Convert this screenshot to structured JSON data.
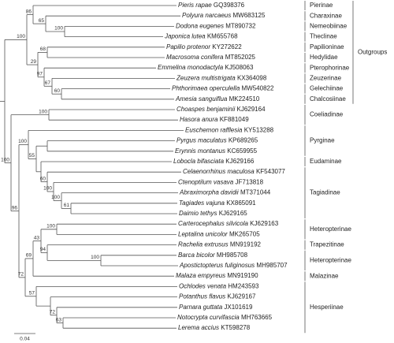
{
  "leaves": [
    {
      "species": "Pieris rapae",
      "accession": "GQ398376"
    },
    {
      "species": "Polyura narcaeus",
      "accession": "MW683125"
    },
    {
      "species": "Dodona eugenes",
      "accession": "MT890732"
    },
    {
      "species": "Japonica lutea",
      "accession": "KM655768"
    },
    {
      "species": "Papilio protenor",
      "accession": "KY272622"
    },
    {
      "species": "Macrosoma conifera",
      "accession": "MT852025"
    },
    {
      "species": "Emmelina monodactyla",
      "accession": "KJ508063"
    },
    {
      "species": "Zeuzera multistrigata",
      "accession": "KX364098"
    },
    {
      "species": "Phthorimaea operculella",
      "accession": "MW540822"
    },
    {
      "species": "Amesia sanguiflua",
      "accession": "MK224510"
    },
    {
      "species": "Choaspes benjaminii",
      "accession": "KJ629164"
    },
    {
      "species": "Hasora anura",
      "accession": "KF881049"
    },
    {
      "species": "Euschemon rafflesia",
      "accession": "KY513288"
    },
    {
      "species": "Pyrgus maculatus",
      "accession": "KP689265"
    },
    {
      "species": "Erynnis montanus",
      "accession": "KC659955"
    },
    {
      "species": "Lobocla bifasciata",
      "accession": "KJ629166"
    },
    {
      "species": "Celaenorrhinus maculosa",
      "accession": "KF543077"
    },
    {
      "species": "Ctenoptilum vasava",
      "accession": "JF713818"
    },
    {
      "species": "Abraximorpha davidii",
      "accession": "MT371044"
    },
    {
      "species": "Tagiades vajuna",
      "accession": "KX865091"
    },
    {
      "species": "Daimio tethys",
      "accession": "KJ629165"
    },
    {
      "species": "Carterocephalus silvicola",
      "accession": "KJ629163"
    },
    {
      "species": "Leptalina unicolor",
      "accession": "MK265705"
    },
    {
      "species": "Rachelia extrusus",
      "accession": "MN919192"
    },
    {
      "species": "Barca bicolor",
      "accession": "MH985708"
    },
    {
      "species": "Apostictopterus fuliginosus",
      "accession": "MH985707"
    },
    {
      "species": "Malaza empyreus",
      "accession": "MN919190"
    },
    {
      "species": "Ochlodes venata",
      "accession": "HM243593"
    },
    {
      "species": "Potanthus flavus",
      "accession": "KJ629167"
    },
    {
      "species": "Parnara guttata",
      "accession": "JX101619"
    },
    {
      "species": "Notocrypta curvifascia",
      "accession": "MH763665"
    },
    {
      "species": "Lerema accius",
      "accession": "KT598278"
    }
  ],
  "subfamilies": [
    "Pierinae",
    "Charaxinae",
    "Nemeobiinae",
    "Theclinae",
    "Papilioninae",
    "Hedylidae",
    "Pterophorinae",
    "Zeuzerinae",
    "Gelechiinae",
    "Chalcosiinae",
    "Coeliadinae",
    "Pyrginae",
    "Eudaminae",
    "Tagiadinae",
    "Heteropterinae",
    "Trapezitinae",
    "Heteropterinae",
    "Malazinae",
    "Hesperiinae"
  ],
  "group_label": "Outgroups",
  "support": [
    86,
    65,
    100,
    68,
    60,
    67,
    97,
    29,
    100,
    100,
    61,
    100,
    100,
    60,
    55,
    100,
    100,
    100,
    94,
    43,
    69,
    63,
    72,
    57,
    72,
    96,
    100
  ],
  "scale_bar": "0.04"
}
